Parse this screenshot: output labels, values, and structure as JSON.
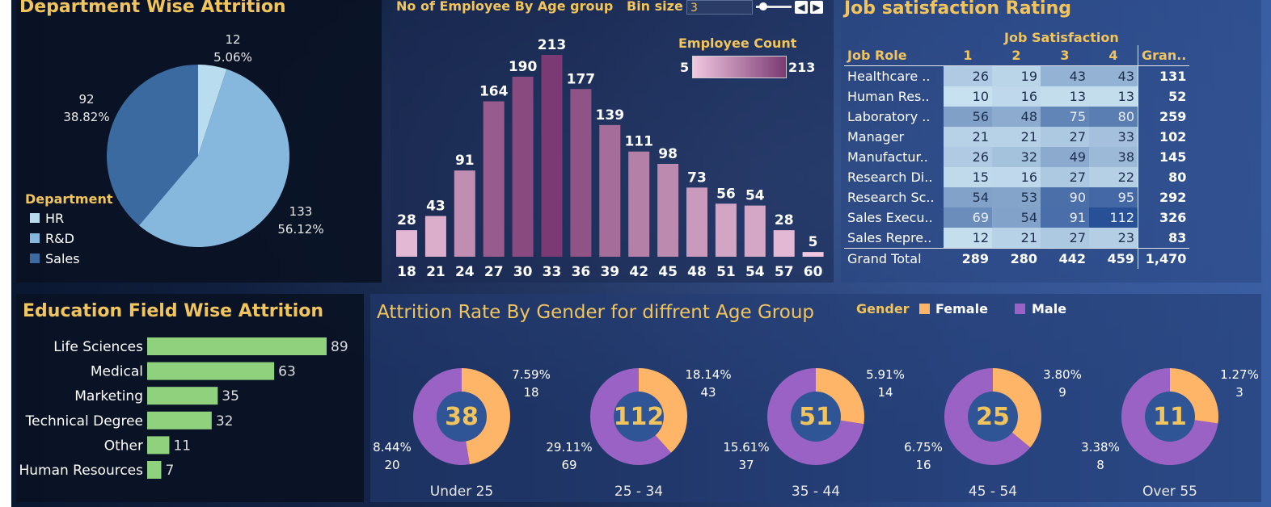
{
  "dept": {
    "title": "Department Wise Attrition",
    "legend_title": "Department",
    "colors": [
      "#b9dcef",
      "#86b8de",
      "#3b6aa1"
    ],
    "slice_labels": [
      {
        "count": "12",
        "pct": "5.06%"
      },
      {
        "count": "133",
        "pct": "56.12%"
      },
      {
        "count": "92",
        "pct": "38.82%"
      }
    ]
  },
  "age": {
    "title": "No of Employee By Age group",
    "bin_label": "Bin size",
    "bin_value": "3",
    "legend_title": "Employee Count",
    "legend_min": "5",
    "legend_max": "213"
  },
  "job": {
    "title": "Job satisfaction Rating",
    "col_group": "Job Satisfaction",
    "role_header": "Job Role",
    "cols": [
      "1",
      "2",
      "3",
      "4"
    ],
    "total_header": "Gran..",
    "rows": [
      {
        "role": "Healthcare ..",
        "vals": [
          "26",
          "19",
          "43",
          "43"
        ],
        "total": "131"
      },
      {
        "role": "Human Res..",
        "vals": [
          "10",
          "16",
          "13",
          "13"
        ],
        "total": "52"
      },
      {
        "role": "Laboratory ..",
        "vals": [
          "56",
          "48",
          "75",
          "80"
        ],
        "total": "259"
      },
      {
        "role": "Manager",
        "vals": [
          "21",
          "21",
          "27",
          "33"
        ],
        "total": "102"
      },
      {
        "role": "Manufactur..",
        "vals": [
          "26",
          "32",
          "49",
          "38"
        ],
        "total": "145"
      },
      {
        "role": "Research Di..",
        "vals": [
          "15",
          "16",
          "27",
          "22"
        ],
        "total": "80"
      },
      {
        "role": "Research Sc..",
        "vals": [
          "54",
          "53",
          "90",
          "95"
        ],
        "total": "292"
      },
      {
        "role": "Sales Execu..",
        "vals": [
          "69",
          "54",
          "91",
          "112"
        ],
        "total": "326"
      },
      {
        "role": "Sales Repre..",
        "vals": [
          "12",
          "21",
          "27",
          "23"
        ],
        "total": "83"
      }
    ],
    "grand": {
      "role": "Grand Total",
      "vals": [
        "289",
        "280",
        "442",
        "459"
      ],
      "total": "1,470"
    }
  },
  "edu": {
    "title": "Education Field Wise Attrition",
    "color": "#8fd17c"
  },
  "gender": {
    "title": "Attrition Rate By Gender for diffrent Age Group",
    "legend_title": "Gender",
    "female_label": "Female",
    "male_label": "Male",
    "female_color": "#ffb568",
    "male_color": "#9a62c4",
    "center_color": "#2f5596",
    "groups": [
      {
        "name": "Under 25",
        "total": "38",
        "f_pct": "7.59%",
        "f_cnt": "18",
        "m_pct": "8.44%",
        "m_cnt": "20"
      },
      {
        "name": "25 - 34",
        "total": "112",
        "f_pct": "18.14%",
        "f_cnt": "43",
        "m_pct": "29.11%",
        "m_cnt": "69"
      },
      {
        "name": "35 - 44",
        "total": "51",
        "f_pct": "5.91%",
        "f_cnt": "14",
        "m_pct": "15.61%",
        "m_cnt": "37"
      },
      {
        "name": "45 - 54",
        "total": "25",
        "f_pct": "3.80%",
        "f_cnt": "9",
        "m_pct": "6.75%",
        "m_cnt": "16"
      },
      {
        "name": "Over 55",
        "total": "11",
        "f_pct": "1.27%",
        "f_cnt": "3",
        "m_pct": "3.38%",
        "m_cnt": "8"
      }
    ]
  },
  "chart_data": [
    {
      "type": "pie",
      "title": "Department Wise Attrition",
      "categories": [
        "HR",
        "R&D",
        "Sales"
      ],
      "values": [
        12,
        133,
        92
      ]
    },
    {
      "type": "bar",
      "title": "No of Employee By Age group",
      "categories": [
        "18",
        "21",
        "24",
        "27",
        "30",
        "33",
        "36",
        "39",
        "42",
        "45",
        "48",
        "51",
        "54",
        "57",
        "60"
      ],
      "values": [
        28,
        43,
        91,
        164,
        190,
        213,
        177,
        139,
        111,
        98,
        73,
        56,
        54,
        28,
        5
      ]
    },
    {
      "type": "heatmap",
      "title": "Job satisfaction Rating",
      "x": [
        "1",
        "2",
        "3",
        "4"
      ],
      "y": [
        "Healthcare ..",
        "Human Res..",
        "Laboratory ..",
        "Manager",
        "Manufactur..",
        "Research Di..",
        "Research Sc..",
        "Sales Execu..",
        "Sales Repre.."
      ],
      "values": [
        [
          26,
          19,
          43,
          43
        ],
        [
          10,
          16,
          13,
          13
        ],
        [
          56,
          48,
          75,
          80
        ],
        [
          21,
          21,
          27,
          33
        ],
        [
          26,
          32,
          49,
          38
        ],
        [
          15,
          16,
          27,
          22
        ],
        [
          54,
          53,
          90,
          95
        ],
        [
          69,
          54,
          91,
          112
        ],
        [
          12,
          21,
          27,
          23
        ]
      ]
    },
    {
      "type": "bar",
      "title": "Education Field Wise Attrition",
      "categories": [
        "Life Sciences",
        "Medical",
        "Marketing",
        "Technical Degree",
        "Other",
        "Human Resources"
      ],
      "values": [
        89,
        63,
        35,
        32,
        11,
        7
      ]
    },
    {
      "type": "pie",
      "title": "Attrition Rate By Gender for diffrent Age Group",
      "categories": [
        "Under 25",
        "25 - 34",
        "35 - 44",
        "45 - 54",
        "Over 55"
      ],
      "series": [
        {
          "name": "Female",
          "values": [
            18,
            43,
            14,
            9,
            3
          ]
        },
        {
          "name": "Male",
          "values": [
            20,
            69,
            37,
            16,
            8
          ]
        }
      ]
    }
  ]
}
